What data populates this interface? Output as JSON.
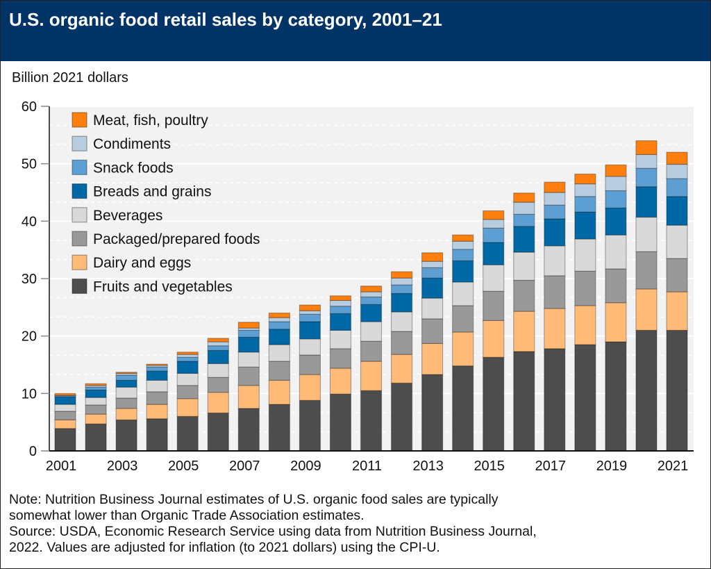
{
  "chart_data": {
    "type": "bar",
    "stacked": true,
    "title": "U.S. organic food retail sales by category, 2001–21",
    "ylabel": "Billion 2021 dollars",
    "xlabel": "",
    "ylim": [
      0,
      60
    ],
    "yticks": [
      0,
      10,
      20,
      30,
      40,
      50,
      60
    ],
    "grid": true,
    "legend_position": "top-left",
    "categories": [
      "2001",
      "2002",
      "2003",
      "2004",
      "2005",
      "2006",
      "2007",
      "2008",
      "2009",
      "2010",
      "2011",
      "2012",
      "2013",
      "2014",
      "2015",
      "2016",
      "2017",
      "2018",
      "2019",
      "2020",
      "2021"
    ],
    "xtick_labels": [
      "2001",
      "2003",
      "2005",
      "2007",
      "2009",
      "2011",
      "2013",
      "2015",
      "2017",
      "2019",
      "2021"
    ],
    "series": [
      {
        "name": "Fruits and vegetables",
        "color": "#4d4d4d",
        "values": [
          3.9,
          4.7,
          5.4,
          5.6,
          6.0,
          6.6,
          7.4,
          8.1,
          8.8,
          9.9,
          10.5,
          11.8,
          13.3,
          14.8,
          16.3,
          17.3,
          17.8,
          18.5,
          19.0,
          21.0,
          21.0
        ]
      },
      {
        "name": "Dairy and eggs",
        "color": "#ffbb77",
        "values": [
          1.5,
          1.7,
          2.0,
          2.5,
          3.1,
          3.6,
          4.0,
          4.2,
          4.5,
          4.5,
          5.1,
          5.0,
          5.4,
          5.9,
          6.4,
          7.0,
          7.0,
          6.8,
          6.8,
          7.2,
          6.7
        ]
      },
      {
        "name": "Packaged/prepared foods",
        "color": "#999999",
        "values": [
          1.5,
          1.6,
          1.8,
          2.2,
          2.3,
          2.6,
          3.2,
          3.3,
          3.4,
          3.4,
          3.5,
          4.0,
          4.3,
          4.6,
          5.1,
          5.4,
          5.7,
          6.0,
          5.9,
          6.5,
          5.8
        ]
      },
      {
        "name": "Beverages",
        "color": "#d9d9d9",
        "values": [
          1.2,
          1.3,
          1.9,
          2.0,
          2.1,
          2.4,
          2.6,
          2.9,
          2.8,
          3.2,
          3.4,
          3.4,
          3.6,
          4.1,
          4.6,
          4.9,
          5.2,
          5.6,
          5.9,
          6.0,
          5.8
        ]
      },
      {
        "name": "Breads and grains",
        "color": "#0068a5",
        "values": [
          1.3,
          1.3,
          1.2,
          1.6,
          2.1,
          2.3,
          2.6,
          2.7,
          3.0,
          2.9,
          3.0,
          3.2,
          3.5,
          3.7,
          3.9,
          4.5,
          4.7,
          4.7,
          4.7,
          5.3,
          5.0
        ]
      },
      {
        "name": "Snack foods",
        "color": "#5e9fd3",
        "values": [
          0.2,
          0.5,
          0.9,
          0.7,
          0.7,
          0.8,
          1.2,
          1.3,
          1.3,
          1.3,
          1.3,
          1.5,
          1.8,
          2.0,
          2.5,
          2.1,
          2.4,
          2.7,
          3.0,
          3.2,
          3.1
        ]
      },
      {
        "name": "Condiments",
        "color": "#b8cde0",
        "values": [
          0.1,
          0.3,
          0.3,
          0.3,
          0.5,
          0.7,
          0.4,
          0.7,
          0.6,
          1.0,
          0.9,
          1.2,
          1.1,
          1.4,
          1.5,
          2.1,
          2.2,
          2.2,
          2.5,
          2.4,
          2.5
        ]
      },
      {
        "name": "Meat, fish, poultry",
        "color": "#ff7f0e",
        "values": [
          0.3,
          0.3,
          0.2,
          0.2,
          0.4,
          0.6,
          1.0,
          0.8,
          1.0,
          0.8,
          1.0,
          1.1,
          1.5,
          1.1,
          1.5,
          1.6,
          1.8,
          1.7,
          2.0,
          2.4,
          2.1
        ]
      }
    ],
    "notes": [
      "Note: Nutrition Business Journal estimates of U.S. organic food sales are typically",
      "somewhat lower than Organic Trade Association estimates.",
      "Source: USDA, Economic Research Service using data from Nutrition Business Journal,",
      "2022. Values are adjusted for inflation (to 2021 dollars) using the CPI-U."
    ]
  },
  "colors": {
    "header": "#003366",
    "plot_bg": "#f2f2f2"
  }
}
